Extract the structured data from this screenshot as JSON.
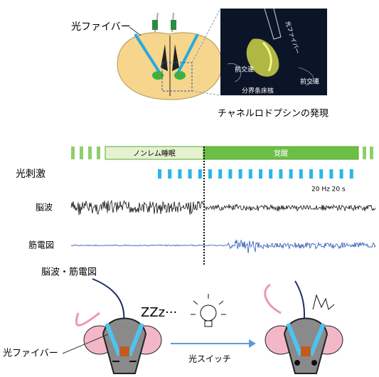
{
  "top_panel": {
    "fiber_label": "光ファイバー",
    "inset_fiber_label": "光ファイバー",
    "inset_labels": [
      "前交連",
      "前交連",
      "分界条床核"
    ],
    "caption": "チャネルロドプシンの発現"
  },
  "recording": {
    "states": [
      "ノンレム睡眠",
      "覚醒"
    ],
    "rows": [
      "光刺激",
      "脳波",
      "筋電図"
    ],
    "stim_note": "20 Hz 20 s"
  },
  "bottom_panel": {
    "recording_label": "脳波・筋電図",
    "sleep_sound": "ZZz···",
    "switch_label": "光スイッチ",
    "fiber_label": "光ファイバー"
  }
}
